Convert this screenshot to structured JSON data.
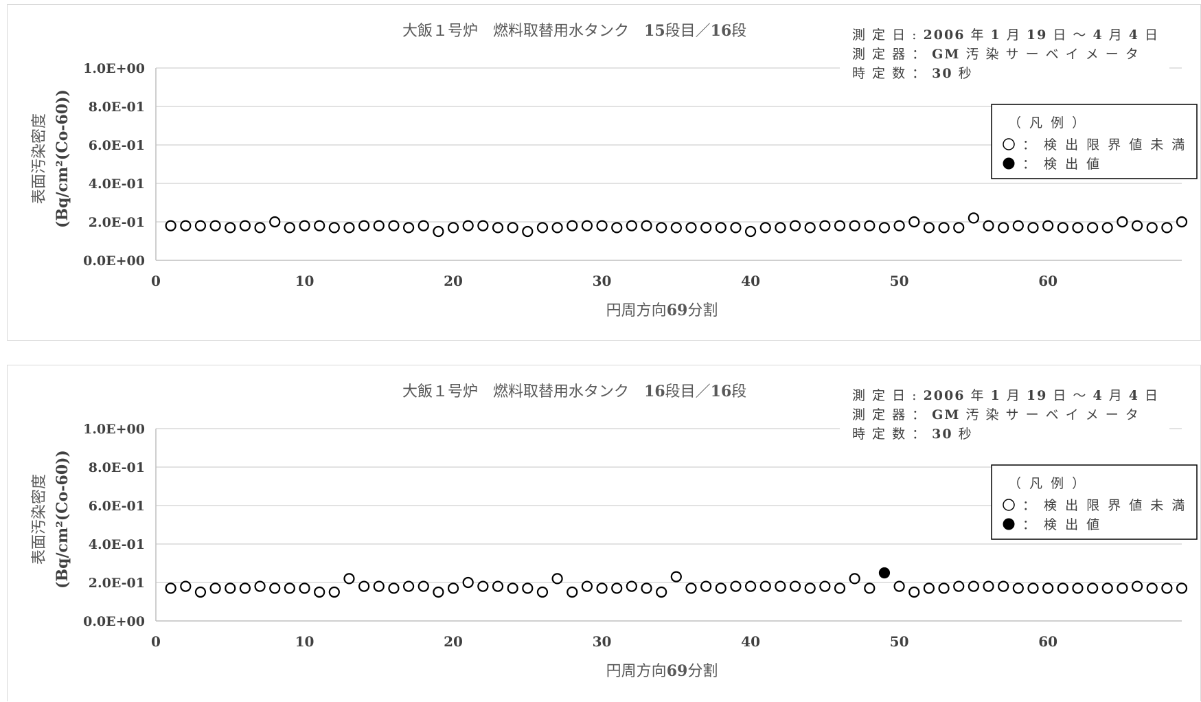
{
  "chart_data": [
    {
      "type": "scatter",
      "title": "大飯１号炉　燃料取替用水タンク　15段目／16段",
      "title_parts": [
        "大飯１号炉　燃料取替用水タンク　",
        "15",
        "段目／",
        "16",
        "段"
      ],
      "ylabel_line1": "表面汚染密度",
      "ylabel_line2": "(Bq/cm²(Co-60))",
      "xlabel": "円周方向69分割",
      "xlabel_parts": [
        "円周方向",
        "69",
        "分割"
      ],
      "xlim": [
        0,
        69
      ],
      "ylim": [
        0,
        1.0
      ],
      "x_ticks": [
        "0",
        "10",
        "20",
        "30",
        "40",
        "50",
        "60"
      ],
      "y_ticks": [
        "0.0E+00",
        "2.0E-01",
        "4.0E-01",
        "6.0E-01",
        "8.0E-01",
        "1.0E+00"
      ],
      "grid": true,
      "info_lines": [
        [
          "測 定 日 : ",
          "2006",
          " 年 ",
          "1",
          " 月 ",
          "19",
          " 日 ～ ",
          "4",
          " 月 ",
          "4",
          " 日"
        ],
        [
          "測 定 器 ： ",
          "GM",
          " 汚 染 サ ー ベ イ メ ー タ"
        ],
        [
          "時 定 数 ： ",
          "30",
          " 秒"
        ]
      ],
      "legend": {
        "title": "（ 凡 例 ）",
        "entries": [
          {
            "symbol": "○",
            "label": "： 検 出 限 界 値 未 満"
          },
          {
            "symbol": "●",
            "label": "： 検 出 値"
          }
        ],
        "placement": "right"
      },
      "series": [
        {
          "marker": "open-circle",
          "x": [
            1,
            2,
            3,
            4,
            5,
            6,
            7,
            8,
            9,
            10,
            11,
            12,
            13,
            14,
            15,
            16,
            17,
            18,
            19,
            20,
            21,
            22,
            23,
            24,
            25,
            26,
            27,
            28,
            29,
            30,
            31,
            32,
            33,
            34,
            35,
            36,
            37,
            38,
            39,
            40,
            41,
            42,
            43,
            44,
            45,
            46,
            47,
            48,
            49,
            50,
            51,
            52,
            53,
            54,
            55,
            56,
            57,
            58,
            59,
            60,
            61,
            62,
            63,
            64,
            65,
            66,
            67,
            68,
            69
          ],
          "y": [
            0.18,
            0.18,
            0.18,
            0.18,
            0.17,
            0.18,
            0.17,
            0.2,
            0.17,
            0.18,
            0.18,
            0.17,
            0.17,
            0.18,
            0.18,
            0.18,
            0.17,
            0.18,
            0.15,
            0.17,
            0.18,
            0.18,
            0.17,
            0.17,
            0.15,
            0.17,
            0.17,
            0.18,
            0.18,
            0.18,
            0.17,
            0.18,
            0.18,
            0.17,
            0.17,
            0.17,
            0.17,
            0.17,
            0.17,
            0.15,
            0.17,
            0.17,
            0.18,
            0.17,
            0.18,
            0.18,
            0.18,
            0.18,
            0.17,
            0.18,
            0.2,
            0.17,
            0.17,
            0.17,
            0.22,
            0.18,
            0.17,
            0.18,
            0.17,
            0.18,
            0.17,
            0.17,
            0.17,
            0.17,
            0.2,
            0.18,
            0.17,
            0.17,
            0.2
          ]
        }
      ]
    },
    {
      "type": "scatter",
      "title": "大飯１号炉　燃料取替用水タンク　16段目／16段",
      "title_parts": [
        "大飯１号炉　燃料取替用水タンク　",
        "16",
        "段目／",
        "16",
        "段"
      ],
      "ylabel_line1": "表面汚染密度",
      "ylabel_line2": "(Bq/cm²(Co-60))",
      "xlabel": "円周方向69分割",
      "xlabel_parts": [
        "円周方向",
        "69",
        "分割"
      ],
      "xlim": [
        0,
        69
      ],
      "ylim": [
        0,
        1.0
      ],
      "x_ticks": [
        "0",
        "10",
        "20",
        "30",
        "40",
        "50",
        "60"
      ],
      "y_ticks": [
        "0.0E+00",
        "2.0E-01",
        "4.0E-01",
        "6.0E-01",
        "8.0E-01",
        "1.0E+00"
      ],
      "grid": true,
      "info_lines": [
        [
          "測 定 日 : ",
          "2006",
          " 年 ",
          "1",
          " 月 ",
          "19",
          " 日 ～ ",
          "4",
          " 月 ",
          "4",
          " 日"
        ],
        [
          "測 定 器 ： ",
          "GM",
          " 汚 染 サ ー ベ イ メ ー タ"
        ],
        [
          "時 定 数 ： ",
          "30",
          " 秒"
        ]
      ],
      "legend": {
        "title": "（ 凡 例 ）",
        "entries": [
          {
            "symbol": "○",
            "label": "： 検 出 限 界 値 未 満"
          },
          {
            "symbol": "●",
            "label": "： 検 出 値"
          }
        ],
        "placement": "right"
      },
      "series": [
        {
          "marker": "open-circle",
          "x": [
            1,
            2,
            3,
            4,
            5,
            6,
            7,
            8,
            9,
            10,
            11,
            12,
            13,
            14,
            15,
            16,
            17,
            18,
            19,
            20,
            21,
            22,
            23,
            24,
            25,
            26,
            27,
            28,
            29,
            30,
            31,
            32,
            33,
            34,
            35,
            36,
            37,
            38,
            39,
            40,
            41,
            42,
            43,
            44,
            45,
            46,
            47,
            48,
            50,
            51,
            52,
            53,
            54,
            55,
            56,
            57,
            58,
            59,
            60,
            61,
            62,
            63,
            64,
            65,
            66,
            67,
            68,
            69
          ],
          "y": [
            0.17,
            0.18,
            0.15,
            0.17,
            0.17,
            0.17,
            0.18,
            0.17,
            0.17,
            0.17,
            0.15,
            0.15,
            0.22,
            0.18,
            0.18,
            0.17,
            0.18,
            0.18,
            0.15,
            0.17,
            0.2,
            0.18,
            0.18,
            0.17,
            0.17,
            0.15,
            0.22,
            0.15,
            0.18,
            0.17,
            0.17,
            0.18,
            0.17,
            0.15,
            0.23,
            0.17,
            0.18,
            0.17,
            0.18,
            0.18,
            0.18,
            0.18,
            0.18,
            0.17,
            0.18,
            0.17,
            0.22,
            0.17,
            0.18,
            0.15,
            0.17,
            0.17,
            0.18,
            0.18,
            0.18,
            0.18,
            0.17,
            0.17,
            0.17,
            0.17,
            0.17,
            0.17,
            0.17,
            0.17,
            0.18,
            0.17,
            0.17,
            0.17
          ]
        },
        {
          "marker": "filled-circle",
          "x": [
            49
          ],
          "y": [
            0.25
          ]
        }
      ]
    }
  ]
}
